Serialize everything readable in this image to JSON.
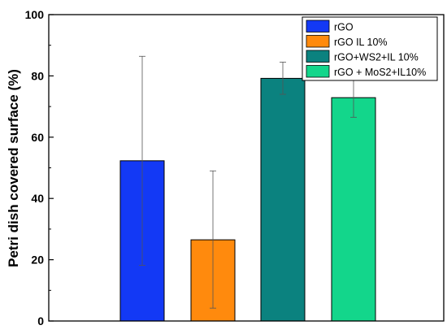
{
  "chart_data": {
    "type": "bar",
    "ylabel": "Petri dish covered surface (%)",
    "xlabel": "",
    "ylim": [
      0,
      100
    ],
    "yticks": [
      "0",
      "20",
      "40",
      "60",
      "80",
      "100"
    ],
    "grid": false,
    "legend_position": "top-right",
    "series": [
      {
        "name": "rGO",
        "value": 52.3,
        "error_low": 18.2,
        "error_high": 86.4,
        "color": "#1339f5"
      },
      {
        "name": "rGO IL 10%",
        "value": 26.5,
        "error_low": 4.2,
        "error_high": 49.0,
        "color": "#ff8a0d"
      },
      {
        "name": "rGO+WS2+IL 10%",
        "value": 79.2,
        "error_low": 74.0,
        "error_high": 84.5,
        "color": "#0b827f"
      },
      {
        "name": "rGO + MoS2+IL10%",
        "value": 72.9,
        "error_low": 66.5,
        "error_high": 79.3,
        "color": "#13d68b"
      }
    ]
  }
}
